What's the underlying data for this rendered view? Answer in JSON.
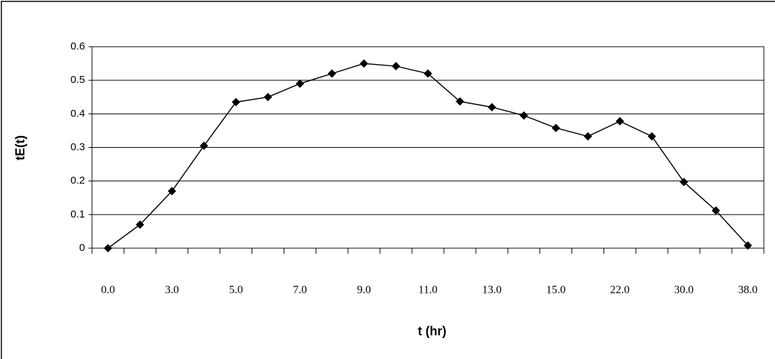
{
  "chart_data": {
    "type": "line",
    "x_label": "t (hr)",
    "y_label": "tE(t)",
    "categories": [
      "0.0",
      null,
      "3.0",
      null,
      "5.0",
      null,
      "7.0",
      null,
      "9.0",
      null,
      "11.0",
      null,
      "13.0",
      null,
      "15.0",
      null,
      "22.0",
      null,
      "30.0",
      null,
      "38.0"
    ],
    "values": [
      0,
      0.07,
      0.17,
      0.305,
      0.435,
      0.45,
      0.49,
      0.52,
      0.55,
      0.542,
      0.52,
      0.437,
      0.42,
      0.395,
      0.358,
      0.333,
      0.378,
      0.333,
      0.197,
      0.112,
      0.008
    ],
    "color": "#000000",
    "ylim": [
      0,
      0.6
    ],
    "yticks": [
      0,
      0.1,
      0.2,
      0.3,
      0.4,
      0.5,
      0.6
    ],
    "grid": true
  }
}
